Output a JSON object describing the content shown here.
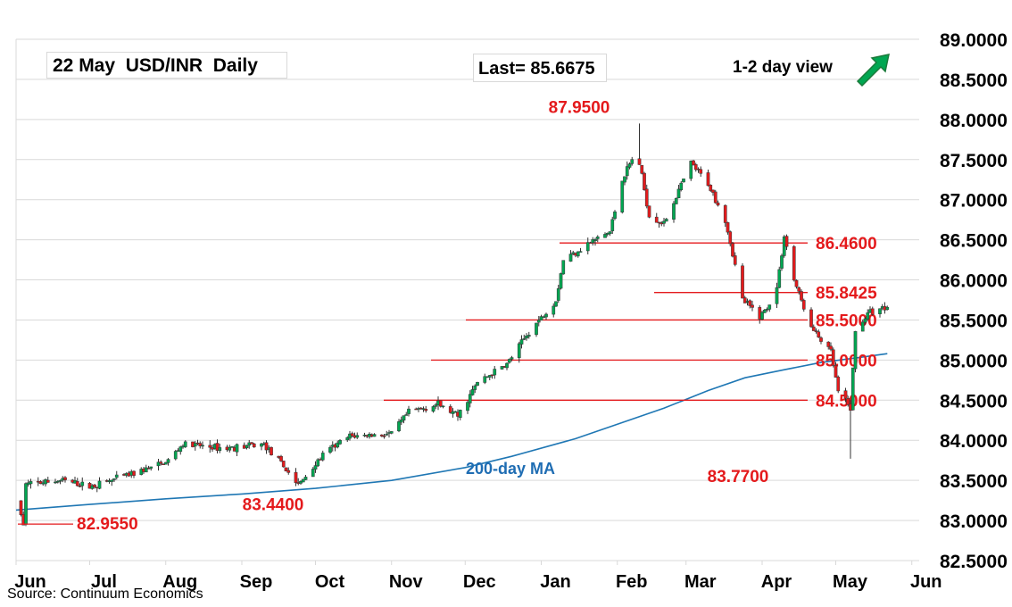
{
  "header": {
    "title": "22 May  USD/INR  Daily",
    "last": "Last= 85.6675",
    "view": "1-2 day view",
    "view_icon": "up-arrow-icon"
  },
  "footer": {
    "source": "Source: Continuum Economics"
  },
  "colors": {
    "up": "#00a651",
    "down": "#e41a1c",
    "level": "#e41a1c",
    "ma": "#1f77b4",
    "grid": "#d9d9d9",
    "label": "#e41a1c",
    "ma_label": "#1f6db3"
  },
  "chart_data": {
    "type": "candlestick",
    "ylim": [
      82.5,
      89.0
    ],
    "yticks": [
      "82.5000",
      "83.0000",
      "83.5000",
      "84.0000",
      "84.5000",
      "85.0000",
      "85.5000",
      "86.0000",
      "86.5000",
      "87.0000",
      "87.5000",
      "88.0000",
      "88.5000",
      "89.0000"
    ],
    "xticks": [
      "Jun",
      "Jul",
      "Aug",
      "Sep",
      "Oct",
      "Nov",
      "Dec",
      "Jan",
      "Feb",
      "Mar",
      "Apr",
      "May",
      "Jun"
    ],
    "levels": [
      {
        "value": 86.46,
        "label": "86.4600"
      },
      {
        "value": 85.8425,
        "label": "85.8425"
      },
      {
        "value": 85.5,
        "label": "85.5000"
      },
      {
        "value": 85.0,
        "label": "85.0000"
      },
      {
        "value": 84.5,
        "label": "84.5000"
      }
    ],
    "point_labels": [
      {
        "label": "87.9500",
        "date": "2025-02-10",
        "value": 87.95
      },
      {
        "label": "83.7700",
        "date": "2025-05-07",
        "value": 83.77
      },
      {
        "label": "83.4400",
        "date": "2024-09-24",
        "value": 83.44
      },
      {
        "label": "82.9550",
        "date": "2024-06-04",
        "value": 82.955
      }
    ],
    "ma_label": "200-day MA",
    "moving_average": [
      [
        "2024-06-01",
        83.13
      ],
      [
        "2024-07-01",
        83.2
      ],
      [
        "2024-08-01",
        83.27
      ],
      [
        "2024-09-01",
        83.33
      ],
      [
        "2024-10-01",
        83.4
      ],
      [
        "2024-11-01",
        83.5
      ],
      [
        "2024-12-01",
        83.66
      ],
      [
        "2024-12-20",
        83.8
      ],
      [
        "2025-01-15",
        84.02
      ],
      [
        "2025-02-01",
        84.2
      ],
      [
        "2025-02-20",
        84.4
      ],
      [
        "2025-03-10",
        84.62
      ],
      [
        "2025-03-25",
        84.78
      ],
      [
        "2025-04-10",
        84.88
      ],
      [
        "2025-04-25",
        84.97
      ],
      [
        "2025-05-10",
        85.03
      ],
      [
        "2025-05-22",
        85.08
      ]
    ],
    "anchors": [
      [
        "2024-06-01",
        83.25
      ],
      [
        "2024-06-04",
        82.955
      ],
      [
        "2024-06-05",
        83.45
      ],
      [
        "2024-06-20",
        83.5
      ],
      [
        "2024-07-01",
        83.42
      ],
      [
        "2024-07-15",
        83.55
      ],
      [
        "2024-08-01",
        83.72
      ],
      [
        "2024-08-08",
        83.95
      ],
      [
        "2024-08-25",
        83.9
      ],
      [
        "2024-09-10",
        83.95
      ],
      [
        "2024-09-20",
        83.6
      ],
      [
        "2024-09-24",
        83.44
      ],
      [
        "2024-10-05",
        83.85
      ],
      [
        "2024-10-15",
        84.05
      ],
      [
        "2024-11-01",
        84.08
      ],
      [
        "2024-11-08",
        84.35
      ],
      [
        "2024-11-20",
        84.45
      ],
      [
        "2024-11-28",
        84.3
      ],
      [
        "2024-12-06",
        84.72
      ],
      [
        "2024-12-18",
        84.95
      ],
      [
        "2024-12-27",
        85.35
      ],
      [
        "2025-01-07",
        85.75
      ],
      [
        "2025-01-10",
        86.25
      ],
      [
        "2025-01-20",
        86.45
      ],
      [
        "2025-01-29",
        86.6
      ],
      [
        "2025-02-03",
        87.25
      ],
      [
        "2025-02-07",
        87.5
      ],
      [
        "2025-02-10",
        87.45
      ],
      [
        "2025-02-14",
        86.8
      ],
      [
        "2025-02-20",
        86.7
      ],
      [
        "2025-03-03",
        87.45
      ],
      [
        "2025-03-10",
        87.2
      ],
      [
        "2025-03-17",
        86.75
      ],
      [
        "2025-03-24",
        85.75
      ],
      [
        "2025-03-31",
        85.55
      ],
      [
        "2025-04-03",
        85.65
      ],
      [
        "2025-04-07",
        85.9
      ],
      [
        "2025-04-10",
        86.55
      ],
      [
        "2025-04-14",
        86.0
      ],
      [
        "2025-04-21",
        85.4
      ],
      [
        "2025-04-29",
        85.1
      ],
      [
        "2025-05-02",
        84.6
      ],
      [
        "2025-05-07",
        84.4
      ],
      [
        "2025-05-09",
        85.35
      ],
      [
        "2025-05-12",
        85.5
      ],
      [
        "2025-05-15",
        85.6
      ],
      [
        "2025-05-22",
        85.6675
      ]
    ]
  }
}
